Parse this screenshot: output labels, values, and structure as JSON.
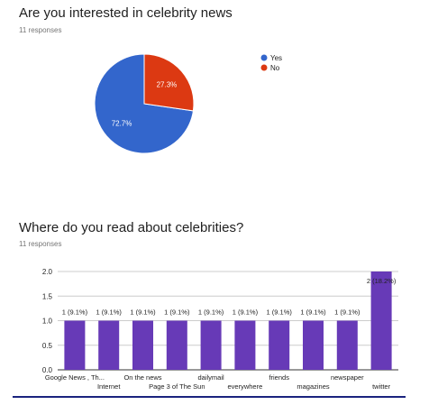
{
  "section1": {
    "title": "Are you interested in celebrity news",
    "responses": "11 responses"
  },
  "section2": {
    "title": "Where do you read about celebrities?",
    "responses": "11 responses"
  },
  "colors": {
    "yes": "#3366cc",
    "no": "#dc3912",
    "bar": "#673ab7"
  },
  "chart_data": [
    {
      "type": "pie",
      "labels": [
        "Yes",
        "No"
      ],
      "values": [
        72.7,
        27.3
      ],
      "data_labels": [
        "72.7%",
        "27.3%"
      ],
      "legend_placement": "right"
    },
    {
      "type": "bar",
      "categories": [
        "Google News , Th...",
        "Internet",
        "On the news",
        "Page 3 of The Sun",
        "dailymail",
        "everywhere",
        "friends",
        "magazines",
        "newspaper",
        "twitter"
      ],
      "values": [
        1,
        1,
        1,
        1,
        1,
        1,
        1,
        1,
        1,
        2
      ],
      "data_labels": [
        "1 (9.1%)",
        "1 (9.1%)",
        "1 (9.1%)",
        "1 (9.1%)",
        "1 (9.1%)",
        "1 (9.1%)",
        "1 (9.1%)",
        "1 (9.1%)",
        "1 (9.1%)",
        "2 (18.2%)"
      ],
      "ylim": [
        0,
        2
      ],
      "yticks": [
        "0.0",
        "0.5",
        "1.0",
        "1.5",
        "2.0"
      ],
      "grid": true
    }
  ]
}
